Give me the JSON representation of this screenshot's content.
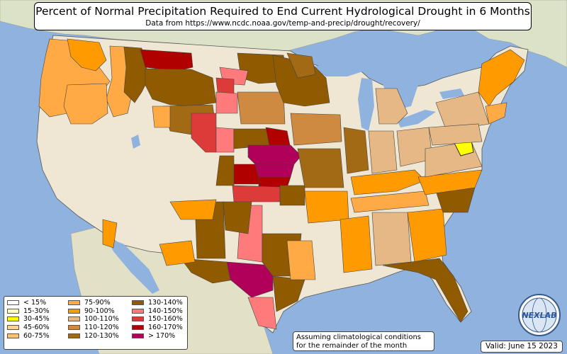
{
  "title": "Percent of Normal Precipitation Required to End Current Hydrological Drought in 6 Months",
  "subtitle": "Data from https://www.ncdc.noaa.gov/temp-and-precip/drought/recovery/",
  "legend": {
    "items": [
      {
        "label": "< 15%",
        "color": "#ffffff"
      },
      {
        "label": "15-30%",
        "color": "#ffffbe"
      },
      {
        "label": "30-45%",
        "color": "#ffff00"
      },
      {
        "label": "45-60%",
        "color": "#ffd38f"
      },
      {
        "label": "60-75%",
        "color": "#ffc270"
      },
      {
        "label": "75-90%",
        "color": "#ffaa44"
      },
      {
        "label": "90-100%",
        "color": "#ff9a00"
      },
      {
        "label": "100-110%",
        "color": "#e6b885"
      },
      {
        "label": "110-120%",
        "color": "#cd8a40"
      },
      {
        "label": "120-130%",
        "color": "#a36a15"
      },
      {
        "label": "130-140%",
        "color": "#8f5a00"
      },
      {
        "label": "140-150%",
        "color": "#ff7b7b"
      },
      {
        "label": "150-160%",
        "color": "#dd3a3a"
      },
      {
        "label": "160-170%",
        "color": "#b00000"
      },
      {
        "label": "> 170%",
        "color": "#b0005a"
      }
    ]
  },
  "note": {
    "line1": "Assuming climatological conditions",
    "line2": "for the remainder of the month"
  },
  "valid": "Valid: June 15 2023",
  "logo": {
    "text": "NEXLAB",
    "icon": "nexlab-globe-logo"
  },
  "map": {
    "ocean_color": "#8fb3de",
    "land_color": "#eee7d6",
    "foreign_land_color": "#dde3c9"
  }
}
